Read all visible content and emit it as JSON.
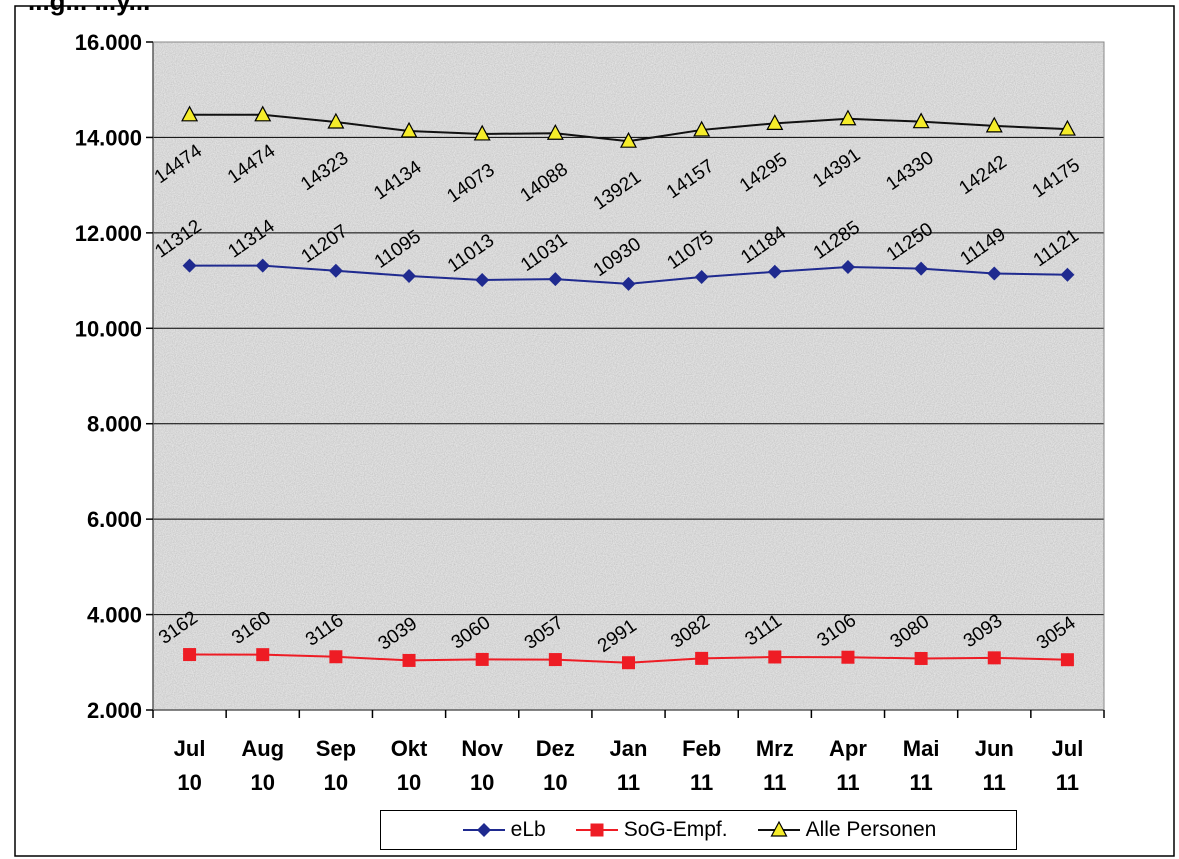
{
  "chart_data": {
    "type": "line",
    "title_fragment": "...g... ...y...",
    "categories": [
      [
        "Jul",
        "10"
      ],
      [
        "Aug",
        "10"
      ],
      [
        "Sep",
        "10"
      ],
      [
        "Okt",
        "10"
      ],
      [
        "Nov",
        "10"
      ],
      [
        "Dez",
        "10"
      ],
      [
        "Jan",
        "11"
      ],
      [
        "Feb",
        "11"
      ],
      [
        "Mrz",
        "11"
      ],
      [
        "Apr",
        "11"
      ],
      [
        "Mai",
        "11"
      ],
      [
        "Jun",
        "11"
      ],
      [
        "Jul",
        "11"
      ]
    ],
    "series": [
      {
        "name": "eLb",
        "color": "#1f2a8f",
        "marker": "diamond",
        "values": [
          11312,
          11314,
          11207,
          11095,
          11013,
          11031,
          10930,
          11075,
          11184,
          11285,
          11250,
          11149,
          11121
        ]
      },
      {
        "name": "SoG-Empf.",
        "color": "#ee1c24",
        "marker": "square",
        "values": [
          3162,
          3160,
          3116,
          3039,
          3060,
          3057,
          2991,
          3082,
          3111,
          3106,
          3080,
          3093,
          3054
        ]
      },
      {
        "name": "Alle Personen",
        "color": "#111111",
        "marker": "triangle",
        "marker_fill": "#f5ec2a",
        "values": [
          14474,
          14474,
          14323,
          14134,
          14073,
          14088,
          13921,
          14157,
          14295,
          14391,
          14330,
          14242,
          14175
        ]
      }
    ],
    "ylim": [
      2000,
      16000
    ],
    "yticks": [
      2000,
      4000,
      6000,
      8000,
      10000,
      12000,
      14000,
      16000
    ],
    "ytick_labels": [
      "2.000",
      "4.000",
      "6.000",
      "8.000",
      "10.000",
      "12.000",
      "14.000",
      "16.000"
    ],
    "grid": true,
    "legend_position": "bottom",
    "data_labels": true
  }
}
